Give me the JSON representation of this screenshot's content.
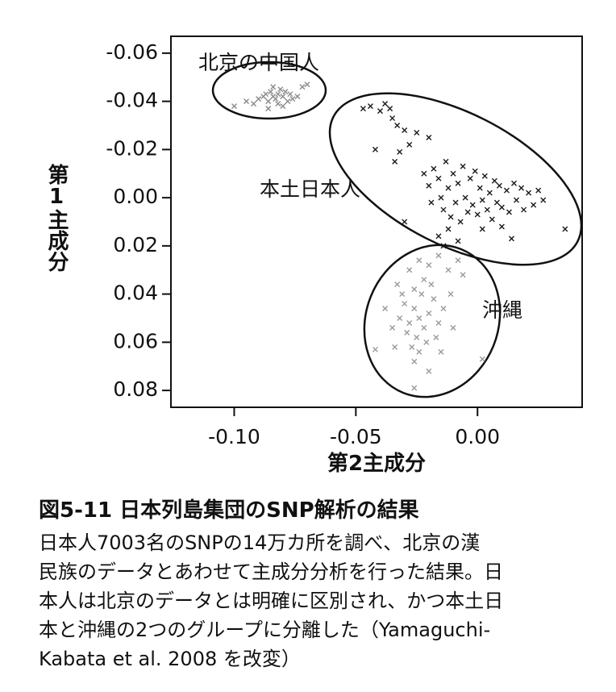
{
  "chart_data": {
    "type": "scatter",
    "xlabel": "第2主成分",
    "ylabel": "第1主成分",
    "xlim": [
      -0.126,
      0.043
    ],
    "ylim": [
      -0.067,
      0.087
    ],
    "y_inverted": true,
    "xticks": [
      {
        "value": -0.1,
        "label": "-0.10"
      },
      -0.05,
      {
        "value": 0,
        "label": "0.00"
      }
    ],
    "yticks": [
      -0.06,
      -0.04,
      -0.02,
      {
        "value": 0,
        "label": "0.00"
      },
      0.02,
      0.04,
      0.06,
      0.08
    ],
    "series": [
      {
        "name": "北京の中国人",
        "color": "#8a8a8a",
        "x": [
          -0.1,
          -0.095,
          -0.092,
          -0.09,
          -0.088,
          -0.087,
          -0.086,
          -0.085,
          -0.084,
          -0.083,
          -0.082,
          -0.082,
          -0.081,
          -0.08,
          -0.079,
          -0.078,
          -0.077,
          -0.076,
          -0.074,
          -0.072,
          -0.07,
          -0.086,
          -0.084,
          -0.08
        ],
        "values": [
          -0.038,
          -0.04,
          -0.039,
          -0.041,
          -0.042,
          -0.043,
          -0.04,
          -0.044,
          -0.042,
          -0.041,
          -0.043,
          -0.039,
          -0.045,
          -0.042,
          -0.044,
          -0.04,
          -0.043,
          -0.041,
          -0.042,
          -0.046,
          -0.047,
          -0.037,
          -0.046,
          -0.038
        ]
      },
      {
        "name": "本土日本人",
        "color": "#1a1a1a",
        "x": [
          -0.047,
          -0.044,
          -0.04,
          -0.038,
          -0.036,
          -0.035,
          -0.033,
          -0.03,
          -0.042,
          -0.034,
          -0.028,
          -0.025,
          -0.02,
          -0.032,
          -0.022,
          -0.02,
          -0.019,
          -0.018,
          -0.016,
          -0.015,
          -0.014,
          -0.013,
          -0.012,
          -0.011,
          -0.01,
          -0.009,
          -0.008,
          -0.007,
          -0.006,
          -0.005,
          -0.004,
          -0.003,
          -0.002,
          -0.001,
          0.0,
          0.001,
          0.002,
          0.003,
          0.004,
          0.005,
          0.006,
          0.007,
          0.008,
          0.009,
          0.01,
          0.012,
          0.013,
          0.015,
          0.016,
          0.018,
          0.019,
          0.021,
          0.023,
          0.025,
          0.027,
          -0.012,
          -0.016,
          -0.008,
          0.002,
          0.01,
          0.014,
          0.036,
          -0.03,
          -0.014
        ],
        "values": [
          -0.037,
          -0.038,
          -0.036,
          -0.039,
          -0.037,
          -0.033,
          -0.03,
          -0.028,
          -0.02,
          -0.015,
          -0.022,
          -0.027,
          -0.025,
          -0.019,
          -0.01,
          -0.005,
          0.002,
          -0.012,
          -0.008,
          0.0,
          0.005,
          -0.015,
          -0.004,
          0.008,
          -0.01,
          0.002,
          -0.006,
          0.01,
          -0.013,
          0.0,
          0.006,
          -0.008,
          0.003,
          -0.011,
          0.007,
          -0.004,
          0.001,
          -0.009,
          0.005,
          -0.002,
          0.009,
          -0.007,
          0.002,
          -0.005,
          0.004,
          -0.003,
          0.006,
          -0.006,
          0.001,
          -0.004,
          0.005,
          -0.002,
          0.003,
          -0.003,
          0.001,
          0.013,
          0.016,
          0.018,
          0.013,
          0.012,
          0.017,
          0.013,
          0.01,
          0.02
        ]
      },
      {
        "name": "沖縄",
        "color": "#9a9a9a",
        "x": [
          -0.024,
          -0.026,
          -0.022,
          -0.028,
          -0.02,
          -0.025,
          -0.03,
          -0.018,
          -0.027,
          -0.021,
          -0.032,
          -0.016,
          -0.023,
          -0.029,
          -0.019,
          -0.026,
          -0.035,
          -0.014,
          -0.024,
          -0.031,
          -0.017,
          -0.022,
          -0.028,
          -0.02,
          -0.012,
          -0.008,
          -0.016,
          -0.024,
          -0.038,
          -0.042,
          -0.026,
          -0.01,
          0.002,
          -0.034,
          -0.02,
          -0.015,
          -0.033,
          -0.026,
          -0.011,
          -0.006
        ],
        "values": [
          0.05,
          0.046,
          0.054,
          0.052,
          0.048,
          0.058,
          0.044,
          0.042,
          0.062,
          0.06,
          0.05,
          0.052,
          0.04,
          0.056,
          0.036,
          0.068,
          0.054,
          0.046,
          0.064,
          0.04,
          0.058,
          0.034,
          0.03,
          0.028,
          0.03,
          0.026,
          0.024,
          0.026,
          0.046,
          0.063,
          0.079,
          0.054,
          0.067,
          0.062,
          0.072,
          0.064,
          0.036,
          0.038,
          0.04,
          0.032
        ]
      }
    ]
  },
  "caption": {
    "title": "図5-11 日本列島集団のSNP解析の結果",
    "lines": [
      "日本人7003名のSNPの14万カ所を調べ、北京の漢",
      "民族のデータとあわせて主成分分析を行った結果。日",
      "本人は北京のデータとは明確に区別され、かつ本土日",
      "本と沖縄の2つのグループに分離した（Yamaguchi-",
      "Kabata et al. 2008 を改変）"
    ]
  }
}
